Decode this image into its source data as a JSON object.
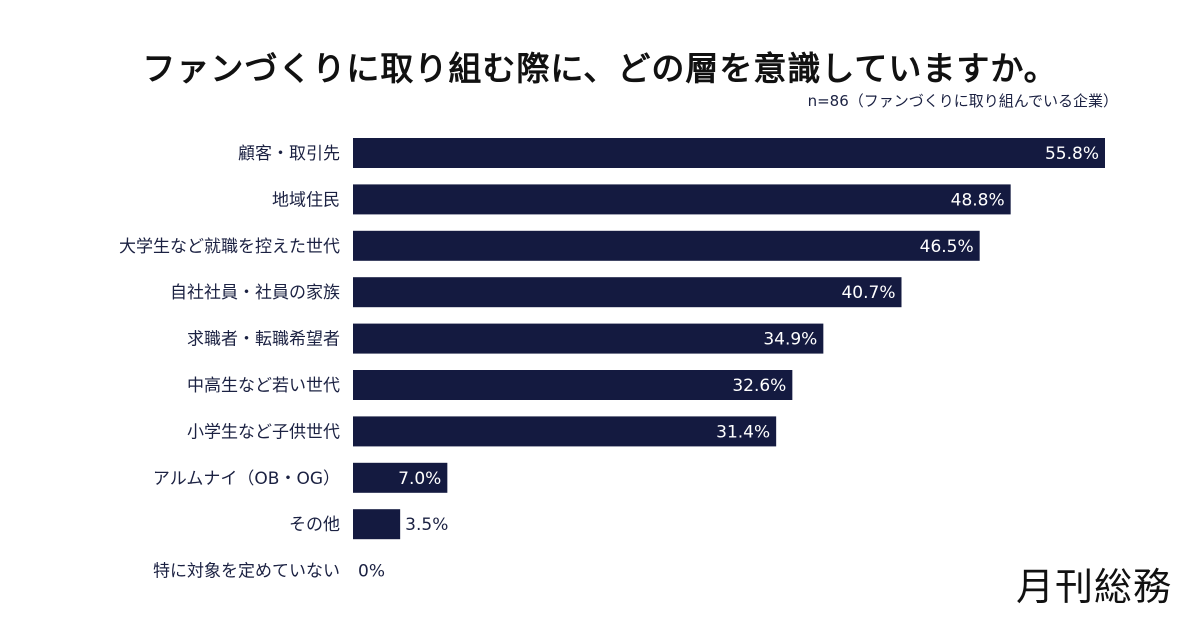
{
  "chart_data": {
    "type": "bar",
    "orientation": "horizontal",
    "title": "ファンづくりに取り組む際に、どの層を意識していますか。",
    "subtitle": "n=86（ファンづくりに取り組んでいる企業）",
    "categories": [
      "顧客・取引先",
      "地域住民",
      "大学生など就職を控えた世代",
      "自社社員・社員の家族",
      "求職者・転職希望者",
      "中高生など若い世代",
      "小学生など子供世代",
      "アルムナイ（OB・OG）",
      "その他",
      "特に対象を定めていない"
    ],
    "values": [
      55.8,
      48.8,
      46.5,
      40.7,
      34.9,
      32.6,
      31.4,
      7.0,
      3.5,
      0
    ],
    "value_labels": [
      "55.8%",
      "48.8%",
      "46.5%",
      "40.7%",
      "34.9%",
      "32.6%",
      "31.4%",
      "7.0%",
      "3.5%",
      "0%"
    ],
    "unit": "%",
    "xlim": [
      0,
      55.8
    ],
    "grid": false,
    "bar_color": "#141a40",
    "label_inside_color": "#ffffff",
    "label_outside_color": "#1b2142"
  },
  "logo": "月刊総務"
}
